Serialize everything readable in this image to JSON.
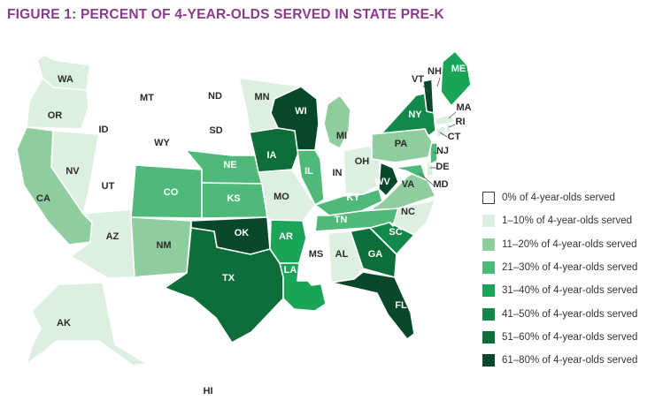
{
  "title": "FIGURE 1: PERCENT OF 4-YEAR-OLDS SERVED IN STATE PRE-K",
  "legend": [
    {
      "label": "0% of 4-year-olds served",
      "color": "#ffffff"
    },
    {
      "label": "1–10% of 4-year-olds served",
      "color": "#dcefe0"
    },
    {
      "label": "11–20% of 4-year-olds served",
      "color": "#8fcc9e"
    },
    {
      "label": "21–30% of 4-year-olds served",
      "color": "#4fb97a"
    },
    {
      "label": "31–40% of 4-year-olds served",
      "color": "#1aa457"
    },
    {
      "label": "41–50% of 4-year-olds served",
      "color": "#12894a"
    },
    {
      "label": "51–60% of 4-year-olds served",
      "color": "#0d6e3a"
    },
    {
      "label": "61–80% of 4-year-olds served",
      "color": "#07472a"
    }
  ],
  "states": [
    {
      "abbr": "WA",
      "category": 1
    },
    {
      "abbr": "OR",
      "category": 1
    },
    {
      "abbr": "CA",
      "category": 2
    },
    {
      "abbr": "NV",
      "category": 1
    },
    {
      "abbr": "ID",
      "category": 0
    },
    {
      "abbr": "MT",
      "category": 0
    },
    {
      "abbr": "WY",
      "category": 0
    },
    {
      "abbr": "UT",
      "category": 0
    },
    {
      "abbr": "AZ",
      "category": 1
    },
    {
      "abbr": "CO",
      "category": 3
    },
    {
      "abbr": "NM",
      "category": 2
    },
    {
      "abbr": "ND",
      "category": 0
    },
    {
      "abbr": "SD",
      "category": 0
    },
    {
      "abbr": "NE",
      "category": 3
    },
    {
      "abbr": "KS",
      "category": 3
    },
    {
      "abbr": "OK",
      "category": 7
    },
    {
      "abbr": "TX",
      "category": 6
    },
    {
      "abbr": "MN",
      "category": 1
    },
    {
      "abbr": "IA",
      "category": 6
    },
    {
      "abbr": "MO",
      "category": 1
    },
    {
      "abbr": "AR",
      "category": 4
    },
    {
      "abbr": "LA",
      "category": 4
    },
    {
      "abbr": "WI",
      "category": 7
    },
    {
      "abbr": "IL",
      "category": 3
    },
    {
      "abbr": "MI",
      "category": 2
    },
    {
      "abbr": "IN",
      "category": 0
    },
    {
      "abbr": "OH",
      "category": 1
    },
    {
      "abbr": "KY",
      "category": 3
    },
    {
      "abbr": "TN",
      "category": 3
    },
    {
      "abbr": "MS",
      "category": 0
    },
    {
      "abbr": "AL",
      "category": 1
    },
    {
      "abbr": "GA",
      "category": 6
    },
    {
      "abbr": "FL",
      "category": 7
    },
    {
      "abbr": "SC",
      "category": 5
    },
    {
      "abbr": "NC",
      "category": 1
    },
    {
      "abbr": "VA",
      "category": 2
    },
    {
      "abbr": "WV",
      "category": 7
    },
    {
      "abbr": "MD",
      "category": 3
    },
    {
      "abbr": "DE",
      "category": 1
    },
    {
      "abbr": "NJ",
      "category": 3
    },
    {
      "abbr": "PA",
      "category": 2
    },
    {
      "abbr": "NY",
      "category": 5
    },
    {
      "abbr": "CT",
      "category": 1
    },
    {
      "abbr": "RI",
      "category": 1
    },
    {
      "abbr": "MA",
      "category": 1
    },
    {
      "abbr": "VT",
      "category": 7
    },
    {
      "abbr": "NH",
      "category": 0
    },
    {
      "abbr": "ME",
      "category": 4
    },
    {
      "abbr": "AK",
      "category": 1
    },
    {
      "abbr": "HI",
      "category": 0
    }
  ]
}
